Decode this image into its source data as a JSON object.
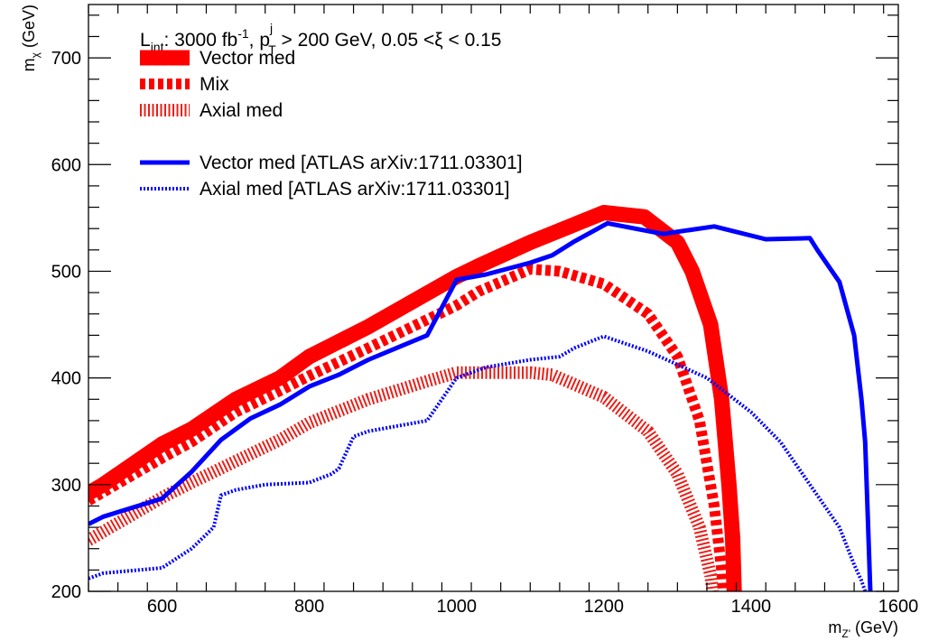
{
  "chart_data": {
    "type": "line",
    "xlabel": {
      "main": "m",
      "sub": "Z'",
      "unit": " (GeV)"
    },
    "ylabel": {
      "main": "m",
      "sub": "χ",
      "unit": " (GeV)"
    },
    "xlim": [
      500,
      1600
    ],
    "ylim": [
      200,
      750
    ],
    "x_ticks": [
      600,
      800,
      1000,
      1200,
      1400,
      1600
    ],
    "y_ticks": [
      200,
      300,
      400,
      500,
      600,
      700
    ],
    "x_tick_labels": [
      "600",
      "800",
      "1000",
      "1200",
      "1400",
      "1600"
    ],
    "y_tick_labels": [
      "200",
      "300",
      "400",
      "500",
      "600",
      "700"
    ],
    "grid": false,
    "legend_position": "top-left",
    "legend_header": {
      "l": "L",
      "int": "int",
      "lumi": ": 3000 fb",
      "inv": "-1",
      "comma": ", p",
      "j": "j",
      "T": "T",
      "ptcut": " > 200 GeV, 0.05 <ξ < 0.15"
    },
    "series": [
      {
        "name": "Vector med",
        "color": "#ff0000",
        "style": "solid-thick",
        "points": [
          [
            500,
            292
          ],
          [
            520,
            300
          ],
          [
            600,
            338
          ],
          [
            640,
            352
          ],
          [
            700,
            380
          ],
          [
            760,
            400
          ],
          [
            800,
            420
          ],
          [
            880,
            448
          ],
          [
            1000,
            495
          ],
          [
            1030,
            505
          ],
          [
            1100,
            527
          ],
          [
            1200,
            555
          ],
          [
            1255,
            551
          ],
          [
            1300,
            527
          ],
          [
            1320,
            500
          ],
          [
            1345,
            450
          ],
          [
            1360,
            380
          ],
          [
            1370,
            300
          ],
          [
            1375,
            250
          ],
          [
            1377,
            200
          ]
        ]
      },
      {
        "name": "Mix",
        "color": "#ff0000",
        "style": "dashed-thick",
        "points": [
          [
            500,
            285
          ],
          [
            520,
            293
          ],
          [
            600,
            325
          ],
          [
            640,
            340
          ],
          [
            700,
            368
          ],
          [
            760,
            388
          ],
          [
            800,
            402
          ],
          [
            880,
            428
          ],
          [
            1000,
            468
          ],
          [
            1030,
            481
          ],
          [
            1100,
            502
          ],
          [
            1140,
            500
          ],
          [
            1200,
            488
          ],
          [
            1260,
            460
          ],
          [
            1300,
            420
          ],
          [
            1330,
            360
          ],
          [
            1350,
            280
          ],
          [
            1360,
            220
          ],
          [
            1362,
            200
          ]
        ]
      },
      {
        "name": "Axial med",
        "color": "#e8201a",
        "style": "hatched",
        "points": [
          [
            500,
            248
          ],
          [
            550,
            268
          ],
          [
            600,
            288
          ],
          [
            640,
            302
          ],
          [
            700,
            322
          ],
          [
            760,
            342
          ],
          [
            800,
            358
          ],
          [
            880,
            380
          ],
          [
            960,
            397
          ],
          [
            1000,
            405
          ],
          [
            1100,
            405
          ],
          [
            1130,
            403
          ],
          [
            1200,
            382
          ],
          [
            1260,
            350
          ],
          [
            1300,
            310
          ],
          [
            1330,
            260
          ],
          [
            1345,
            215
          ],
          [
            1348,
            200
          ]
        ]
      },
      {
        "name": "Vector med [ATLAS arXiv:1711.03301]",
        "color": "#0000ff",
        "style": "solid",
        "points": [
          [
            500,
            263
          ],
          [
            520,
            270
          ],
          [
            600,
            287
          ],
          [
            640,
            312
          ],
          [
            680,
            342
          ],
          [
            720,
            362
          ],
          [
            760,
            375
          ],
          [
            800,
            392
          ],
          [
            840,
            403
          ],
          [
            880,
            417
          ],
          [
            960,
            440
          ],
          [
            1000,
            492
          ],
          [
            1040,
            497
          ],
          [
            1100,
            508
          ],
          [
            1130,
            515
          ],
          [
            1160,
            528
          ],
          [
            1205,
            545
          ],
          [
            1280,
            535
          ],
          [
            1350,
            542
          ],
          [
            1420,
            530
          ],
          [
            1480,
            531
          ],
          [
            1490,
            520
          ],
          [
            1520,
            490
          ],
          [
            1540,
            440
          ],
          [
            1550,
            380
          ],
          [
            1555,
            340
          ],
          [
            1558,
            280
          ],
          [
            1560,
            240
          ],
          [
            1562,
            200
          ]
        ]
      },
      {
        "name": "Axial med [ATLAS arXiv:1711.03301]",
        "color": "#0000ff",
        "style": "dotted",
        "points": [
          [
            500,
            212
          ],
          [
            520,
            217
          ],
          [
            600,
            222
          ],
          [
            640,
            240
          ],
          [
            670,
            260
          ],
          [
            680,
            290
          ],
          [
            700,
            295
          ],
          [
            740,
            300
          ],
          [
            800,
            302
          ],
          [
            830,
            310
          ],
          [
            840,
            315
          ],
          [
            860,
            345
          ],
          [
            880,
            350
          ],
          [
            960,
            360
          ],
          [
            980,
            380
          ],
          [
            1000,
            400
          ],
          [
            1040,
            410
          ],
          [
            1100,
            417
          ],
          [
            1140,
            420
          ],
          [
            1160,
            428
          ],
          [
            1200,
            439
          ],
          [
            1260,
            425
          ],
          [
            1340,
            400
          ],
          [
            1400,
            368
          ],
          [
            1440,
            340
          ],
          [
            1480,
            300
          ],
          [
            1520,
            260
          ],
          [
            1540,
            225
          ],
          [
            1550,
            210
          ],
          [
            1555,
            200
          ]
        ]
      }
    ]
  }
}
